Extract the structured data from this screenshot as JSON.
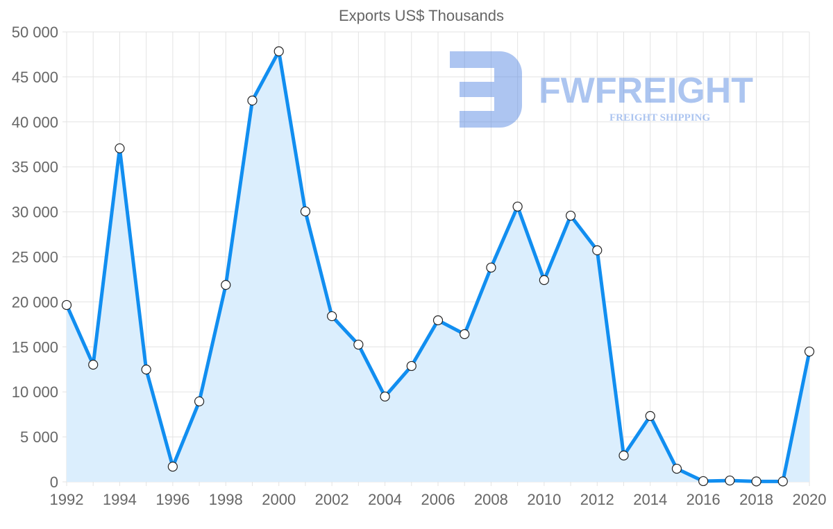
{
  "chart_data": {
    "type": "line",
    "title": "Exports US$ Thousands",
    "xlabel": "",
    "ylabel": "",
    "x": [
      1992,
      1993,
      1994,
      1995,
      1996,
      1997,
      1998,
      1999,
      2000,
      2001,
      2002,
      2003,
      2004,
      2005,
      2006,
      2007,
      2008,
      2009,
      2010,
      2011,
      2012,
      2013,
      2014,
      2015,
      2016,
      2017,
      2018,
      2019,
      2020
    ],
    "series": [
      {
        "name": "Exports US$ Thousands",
        "values": [
          19650,
          13020,
          37060,
          12480,
          1690,
          8940,
          21880,
          42370,
          47840,
          30050,
          18410,
          15250,
          9480,
          12870,
          17950,
          16410,
          23810,
          30590,
          22420,
          29580,
          25730,
          2930,
          7320,
          1460,
          80,
          150,
          50,
          50,
          14480
        ]
      }
    ],
    "ylim": [
      0,
      50000
    ],
    "xlim": [
      1992,
      2020
    ],
    "y_ticks": [
      "0",
      "5 000",
      "10 000",
      "15 000",
      "20 000",
      "25 000",
      "30 000",
      "35 000",
      "40 000",
      "45 000",
      "50 000"
    ],
    "x_ticks": [
      "1992",
      "1994",
      "1996",
      "1998",
      "2000",
      "2002",
      "2004",
      "2006",
      "2008",
      "2010",
      "2012",
      "2014",
      "2016",
      "2018",
      "2020"
    ],
    "grid": true,
    "legend": "none",
    "colors": {
      "line": "#118ef0",
      "fill": "#dbeefd",
      "grid": "#e3e3e3"
    },
    "watermark": {
      "brand": "FWFREIGHT",
      "tagline": "FREIGHT SHIPPING"
    }
  }
}
